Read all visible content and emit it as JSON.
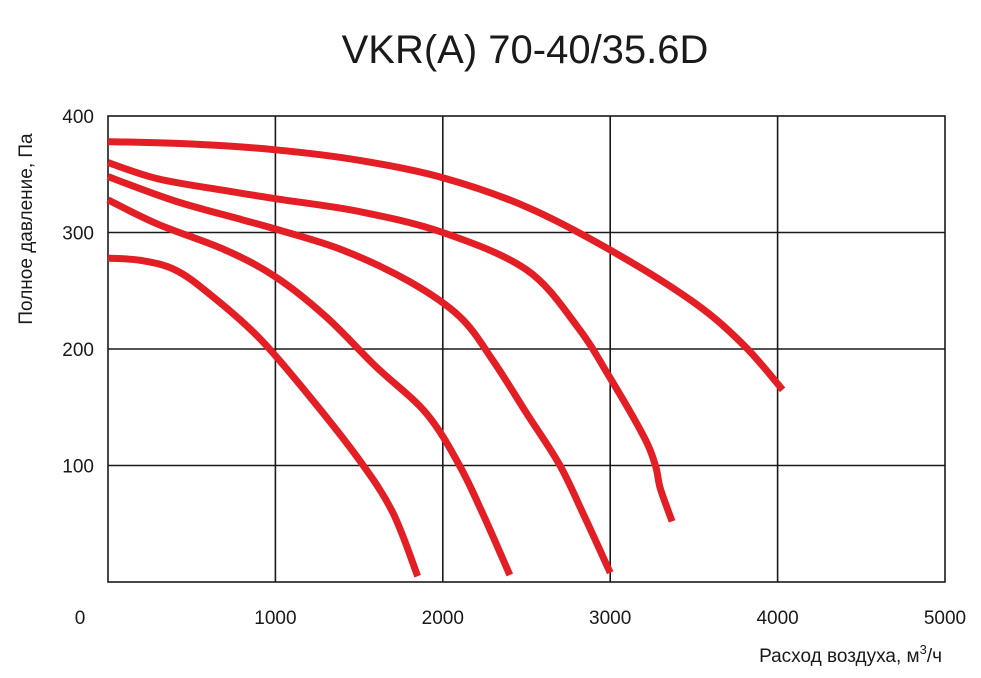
{
  "chart_data": {
    "type": "line",
    "title": "VKR(A) 70-40/35.6D",
    "xlabel": "Расход воздуха, м",
    "xlabel_sup": "3",
    "xlabel_tail": "/ч",
    "ylabel": "Полное давление, Па",
    "xlim": [
      0,
      5000
    ],
    "ylim": [
      0,
      400
    ],
    "x_ticks": [
      0,
      1000,
      2000,
      3000,
      4000,
      5000
    ],
    "y_ticks": [
      100,
      200,
      300,
      400
    ],
    "grid": true,
    "color": "#e31e25",
    "series": [
      {
        "points": [
          [
            0,
            378
          ],
          [
            500,
            376
          ],
          [
            1000,
            371
          ],
          [
            1500,
            362
          ],
          [
            2000,
            347
          ],
          [
            2500,
            322
          ],
          [
            3000,
            285
          ],
          [
            3500,
            240
          ],
          [
            3800,
            203
          ],
          [
            4030,
            165
          ]
        ]
      },
      {
        "points": [
          [
            0,
            360
          ],
          [
            300,
            346
          ],
          [
            700,
            336
          ],
          [
            1000,
            329
          ],
          [
            1500,
            318
          ],
          [
            2000,
            300
          ],
          [
            2500,
            268
          ],
          [
            2800,
            220
          ],
          [
            3000,
            175
          ],
          [
            3200,
            125
          ],
          [
            3270,
            100
          ],
          [
            3300,
            80
          ],
          [
            3370,
            52
          ]
        ]
      },
      {
        "points": [
          [
            0,
            348
          ],
          [
            400,
            327
          ],
          [
            800,
            311
          ],
          [
            1000,
            303
          ],
          [
            1400,
            285
          ],
          [
            1800,
            258
          ],
          [
            2100,
            228
          ],
          [
            2300,
            190
          ],
          [
            2500,
            145
          ],
          [
            2700,
            100
          ],
          [
            2850,
            55
          ],
          [
            3000,
            8
          ]
        ]
      },
      {
        "points": [
          [
            0,
            328
          ],
          [
            300,
            307
          ],
          [
            700,
            285
          ],
          [
            1000,
            262
          ],
          [
            1300,
            228
          ],
          [
            1600,
            185
          ],
          [
            1900,
            145
          ],
          [
            2100,
            100
          ],
          [
            2250,
            55
          ],
          [
            2400,
            6
          ]
        ]
      },
      {
        "points": [
          [
            0,
            278
          ],
          [
            200,
            276
          ],
          [
            400,
            268
          ],
          [
            600,
            248
          ],
          [
            900,
            210
          ],
          [
            1200,
            160
          ],
          [
            1500,
            105
          ],
          [
            1700,
            60
          ],
          [
            1850,
            5
          ]
        ]
      }
    ]
  }
}
